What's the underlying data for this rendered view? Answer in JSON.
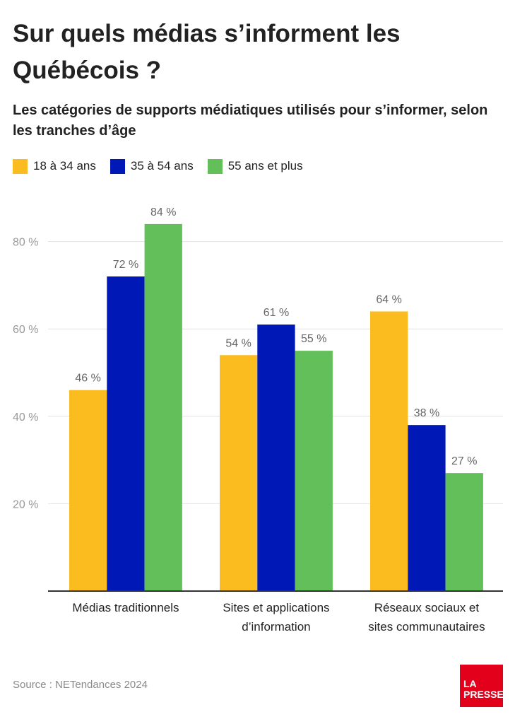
{
  "title": "Sur quels médias s’informent les Québécois ?",
  "subtitle": "Les catégories de supports médiatiques utilisés pour s’informer, selon les tranches d’âge",
  "source": "Source : NETendances 2024",
  "logo": {
    "line1": "LA",
    "line2": "PRESSE"
  },
  "colors": {
    "s1": "#fbbc1f",
    "s2": "#0019b6",
    "s3": "#63bf59",
    "grid": "#e2e2e2",
    "axis": "#333333",
    "tick": "#999999",
    "label": "#666666"
  },
  "chart_data": {
    "type": "bar",
    "categories": [
      [
        "Médias traditionnels"
      ],
      [
        "Sites et applications",
        "d’information"
      ],
      [
        "Réseaux sociaux et",
        "sites communautaires"
      ]
    ],
    "series": [
      {
        "name": "18 à 34 ans",
        "values": [
          46,
          54,
          64
        ],
        "labels": [
          "46 %",
          "54 %",
          "64 %"
        ]
      },
      {
        "name": "35 à 54 ans",
        "values": [
          72,
          61,
          38
        ],
        "labels": [
          "72 %",
          "61 %",
          "38 %"
        ]
      },
      {
        "name": "55 ans et plus",
        "values": [
          84,
          55,
          27
        ],
        "labels": [
          "84 %",
          "55 %",
          "27 %"
        ]
      }
    ],
    "yticks": [
      20,
      40,
      60,
      80
    ],
    "ytick_labels": [
      "20 %",
      "40 %",
      "60 %",
      "80 %"
    ],
    "ylim": [
      0,
      90
    ],
    "grid": true,
    "legend": "top-left"
  }
}
